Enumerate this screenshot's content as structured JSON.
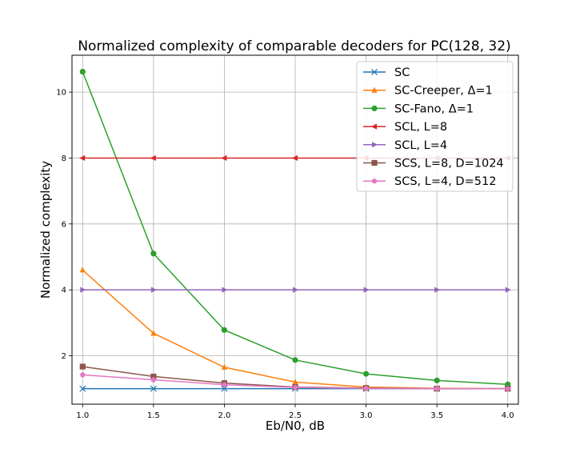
{
  "chart_data": {
    "type": "line",
    "title": "Normalized complexity of comparable decoders for PC(128, 32)",
    "xlabel": "Eb/N0, dB",
    "ylabel": "Normalized complexity",
    "x": [
      1.0,
      1.5,
      2.0,
      2.5,
      3.0,
      3.5,
      4.0
    ],
    "x_ticks": [
      "1.0",
      "1.5",
      "2.0",
      "2.5",
      "3.0",
      "3.5",
      "4.0"
    ],
    "y_ticks": [
      "2",
      "4",
      "6",
      "8",
      "10"
    ],
    "xlim": [
      0.925,
      4.075
    ],
    "ylim": [
      0.53,
      11.12
    ],
    "grid": true,
    "legend_position": "top-right",
    "series": [
      {
        "name": "SC",
        "color": "#1f77b4",
        "marker": "x",
        "values": [
          1.0,
          1.0,
          1.0,
          1.0,
          1.0,
          1.0,
          1.0
        ]
      },
      {
        "name": "SC-Creeper, Δ=1",
        "color": "#ff7f0e",
        "marker": "triangle-up",
        "values": [
          4.6,
          2.68,
          1.65,
          1.2,
          1.05,
          1.01,
          1.0
        ]
      },
      {
        "name": "SC-Fano, Δ=1",
        "color": "#2ca02c",
        "marker": "circle",
        "values": [
          10.62,
          5.1,
          2.78,
          1.87,
          1.45,
          1.25,
          1.13
        ]
      },
      {
        "name": "SCL, L=8",
        "color": "#d62728",
        "marker": "triangle-left",
        "values": [
          8.0,
          8.0,
          8.0,
          8.0,
          8.0,
          8.0,
          8.0
        ]
      },
      {
        "name": "SCL, L=4",
        "color": "#9467bd",
        "marker": "triangle-right",
        "values": [
          4.0,
          4.0,
          4.0,
          4.0,
          4.0,
          4.0,
          4.0
        ]
      },
      {
        "name": "SCS, L=8, D=1024",
        "color": "#8c564b",
        "marker": "square",
        "values": [
          1.67,
          1.37,
          1.17,
          1.05,
          1.02,
          1.0,
          1.0
        ]
      },
      {
        "name": "SCS, L=4, D=512",
        "color": "#e377c2",
        "marker": "pentagon",
        "values": [
          1.42,
          1.27,
          1.12,
          1.04,
          1.01,
          1.0,
          1.0
        ]
      }
    ]
  }
}
